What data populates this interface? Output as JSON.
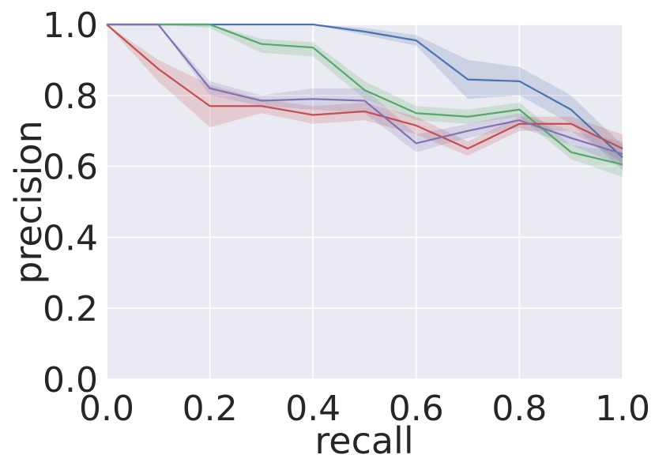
{
  "chart_data": {
    "type": "line",
    "title": "",
    "xlabel": "recall",
    "ylabel": "precision",
    "xlim": [
      0.0,
      1.0
    ],
    "ylim": [
      0.0,
      1.0
    ],
    "xticks": [
      "0.0",
      "0.2",
      "0.4",
      "0.6",
      "0.8",
      "1.0"
    ],
    "yticks": [
      "0.0",
      "0.2",
      "0.4",
      "0.6",
      "0.8",
      "1.0"
    ],
    "grid": true,
    "background": "#EAEAF2",
    "x": [
      0.0,
      0.1,
      0.2,
      0.3,
      0.4,
      0.5,
      0.6,
      0.7,
      0.8,
      0.9,
      1.0
    ],
    "series": [
      {
        "color": "#4C72B0",
        "values": [
          1.0,
          1.0,
          1.0,
          1.0,
          1.0,
          0.98,
          0.955,
          0.845,
          0.84,
          0.76,
          0.625
        ],
        "band": [
          [
            1.0,
            1.0
          ],
          [
            1.0,
            1.0
          ],
          [
            1.0,
            1.0
          ],
          [
            1.0,
            1.0
          ],
          [
            1.0,
            1.0
          ],
          [
            0.97,
            0.99
          ],
          [
            0.94,
            0.97
          ],
          [
            0.79,
            0.9
          ],
          [
            0.8,
            0.88
          ],
          [
            0.72,
            0.8
          ],
          [
            0.59,
            0.66
          ]
        ]
      },
      {
        "color": "#55A868",
        "values": [
          1.0,
          1.0,
          1.0,
          0.945,
          0.935,
          0.815,
          0.75,
          0.74,
          0.76,
          0.64,
          0.605
        ],
        "band": [
          [
            1.0,
            1.0
          ],
          [
            1.0,
            1.0
          ],
          [
            0.99,
            1.0
          ],
          [
            0.92,
            0.96
          ],
          [
            0.91,
            0.95
          ],
          [
            0.79,
            0.84
          ],
          [
            0.73,
            0.77
          ],
          [
            0.72,
            0.76
          ],
          [
            0.74,
            0.78
          ],
          [
            0.62,
            0.66
          ],
          [
            0.57,
            0.64
          ]
        ]
      },
      {
        "color": "#C44E52",
        "values": [
          1.0,
          0.875,
          0.77,
          0.77,
          0.745,
          0.755,
          0.715,
          0.65,
          0.72,
          0.72,
          0.65
        ],
        "band": [
          [
            1.0,
            1.0
          ],
          [
            0.84,
            0.9
          ],
          [
            0.71,
            0.83
          ],
          [
            0.75,
            0.79
          ],
          [
            0.72,
            0.77
          ],
          [
            0.73,
            0.78
          ],
          [
            0.69,
            0.74
          ],
          [
            0.63,
            0.67
          ],
          [
            0.7,
            0.74
          ],
          [
            0.7,
            0.74
          ],
          [
            0.61,
            0.69
          ]
        ]
      },
      {
        "color": "#8172B2",
        "values": [
          1.0,
          1.0,
          0.82,
          0.785,
          0.79,
          0.785,
          0.665,
          0.7,
          0.73,
          0.68,
          0.635
        ],
        "band": [
          [
            1.0,
            1.0
          ],
          [
            1.0,
            1.0
          ],
          [
            0.8,
            0.84
          ],
          [
            0.77,
            0.8
          ],
          [
            0.76,
            0.82
          ],
          [
            0.75,
            0.82
          ],
          [
            0.64,
            0.69
          ],
          [
            0.68,
            0.72
          ],
          [
            0.71,
            0.75
          ],
          [
            0.66,
            0.7
          ],
          [
            0.6,
            0.67
          ]
        ]
      }
    ]
  }
}
